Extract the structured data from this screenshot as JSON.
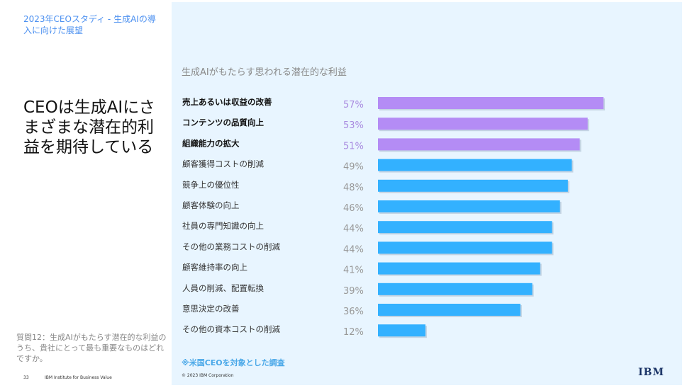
{
  "header": {
    "study_title": "2023年CEOスタディ - 生成AIの導入に向けた展望"
  },
  "headline": "CEOは生成AIにさまざまな潜在的利益を期待している",
  "question": "質問12：生成AIがもたらす潜在的な利益のうち、貴社にとって最も重要なものはどれですか。",
  "footer": {
    "page_number": "33",
    "publisher": "IBM Institute for Business Value",
    "copyright": "© 2023 IBM Corporation",
    "logo_text": "IBM"
  },
  "note": "※米国CEOを対象とした調査",
  "colors": {
    "highlight_bar": "#b48cf5",
    "normal_bar": "#33b1ff",
    "study_title": "#4a8ff0",
    "right_panel_bg": "#e8f5ff"
  },
  "chart_data": {
    "type": "bar",
    "orientation": "horizontal",
    "title": "生成AIがもたらす思われる潜在的な利益",
    "categories": [
      "売上あるいは収益の改善",
      "コンテンツの品質向上",
      "組織能力の拡大",
      "顧客獲得コストの削減",
      "競争上の優位性",
      "顧客体験の向上",
      "社員の専門知識の向上",
      "その他の業務コストの削減",
      "顧客維持率の向上",
      "人員の削減、配置転換",
      "意思決定の改善",
      "その他の資本コストの削減"
    ],
    "values": [
      57,
      53,
      51,
      49,
      48,
      46,
      44,
      44,
      41,
      39,
      36,
      12
    ],
    "value_labels": [
      "57%",
      "53%",
      "51%",
      "49%",
      "48%",
      "46%",
      "44%",
      "44%",
      "41%",
      "39%",
      "36%",
      "12%"
    ],
    "highlighted_count": 3,
    "xlim": [
      0,
      100
    ]
  }
}
